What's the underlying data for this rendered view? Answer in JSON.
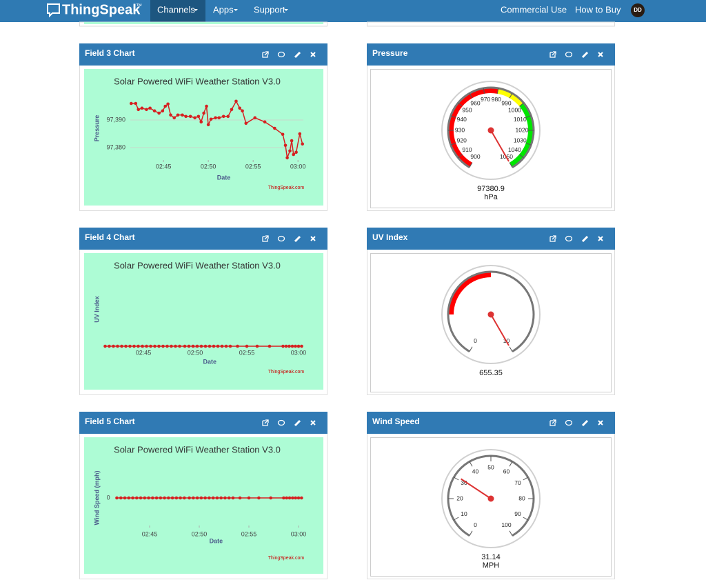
{
  "nav": {
    "brand": "ThingSpeak",
    "trademark": "™",
    "menus": [
      "Channels",
      "Apps",
      "Support"
    ],
    "links": [
      "Commercial Use",
      "How to Buy"
    ],
    "avatar": "DD"
  },
  "charts": [
    {
      "title": "Field 3 Chart",
      "chart_title": "Solar Powered WiFi Weather Station V3.0",
      "y_label": "Pressure",
      "x_label": "Date",
      "credit": "ThingSpeak.com",
      "color": "#d62020",
      "xlim": [
        161.3,
        180.6
      ],
      "ylim": [
        97375.5,
        97398.5
      ],
      "xticks": [
        {
          "value": 165,
          "label": "02:45"
        },
        {
          "value": 170,
          "label": "02:50"
        },
        {
          "value": 175,
          "label": "02:55"
        },
        {
          "value": 180,
          "label": "03:00"
        }
      ],
      "yticks": [
        {
          "value": 97390,
          "label": "97,390"
        },
        {
          "value": 97380,
          "label": "97,380"
        }
      ],
      "x": [
        161.4,
        161.9,
        162.2,
        162.6,
        163.1,
        163.5,
        164.0,
        164.5,
        164.9,
        165.2,
        165.5,
        165.8,
        166.2,
        166.6,
        167.1,
        167.5,
        168.0,
        168.5,
        168.9,
        169.2,
        169.5,
        169.8,
        170.0,
        170.3,
        170.8,
        171.2,
        171.7,
        172.2,
        172.6,
        173.1,
        173.5,
        173.8,
        174.2,
        175.2,
        176.3,
        177.4,
        178.3,
        178.6,
        178.8,
        179.1,
        179.3,
        179.5,
        179.8,
        180.2,
        180.5
      ],
      "values": [
        97396,
        97396,
        97393.8,
        97394.3,
        97393.8,
        97394.3,
        97393.3,
        97392.5,
        97393.3,
        97395,
        97395.8,
        97391.8,
        97390.8,
        97391.8,
        97391.8,
        97391.3,
        97391.3,
        97390.8,
        97391.3,
        97389.3,
        97392.5,
        97395,
        97388.3,
        97390.3,
        97390.8,
        97390.8,
        97391.3,
        97391.3,
        97393.8,
        97396.8,
        97394.3,
        97393.3,
        97388.8,
        97390.8,
        97389.3,
        97387,
        97384.8,
        97380.8,
        97376.3,
        97378.8,
        97382.5,
        97377.5,
        97378.3,
        97385,
        97381.3
      ]
    },
    {
      "title": "Field 4 Chart",
      "chart_title": "Solar Powered WiFi Weather Station V3.0",
      "y_label": "UV Index",
      "x_label": "Date",
      "credit": "ThingSpeak.com",
      "color": "#d62020",
      "xlim": [
        161,
        180.5
      ],
      "ylim": [
        0,
        1
      ],
      "xticks": [
        {
          "value": 165,
          "label": "02:45"
        },
        {
          "value": 170,
          "label": "02:50"
        },
        {
          "value": 175,
          "label": "02:55"
        },
        {
          "value": 180,
          "label": "03:00"
        }
      ],
      "x": [
        161.3,
        161.7,
        162.1,
        162.5,
        162.9,
        163.3,
        163.7,
        164.1,
        164.5,
        164.9,
        165.3,
        165.7,
        166.1,
        166.5,
        166.9,
        167.3,
        167.7,
        168.1,
        168.5,
        169.0,
        169.4,
        169.8,
        170.2,
        170.6,
        171.0,
        171.4,
        171.8,
        172.2,
        172.6,
        173.0,
        173.4,
        174.1,
        175.0,
        176.0,
        177.2,
        178.5,
        178.8,
        179.1,
        179.4,
        179.7,
        180.0,
        180.3
      ],
      "values": [
        0,
        0,
        0,
        0,
        0,
        0,
        0,
        0,
        0,
        0,
        0,
        0,
        0,
        0,
        0,
        0,
        0,
        0,
        0,
        0,
        0,
        0,
        0,
        0,
        0,
        0,
        0,
        0,
        0,
        0,
        0,
        0,
        0,
        0,
        0,
        0,
        0,
        0,
        0,
        0,
        0,
        0
      ]
    },
    {
      "title": "Field 5 Chart",
      "chart_title": "Solar Powered WiFi Weather Station V3.0",
      "y_label": "Wind Speed (mph)",
      "x_label": "Date",
      "credit": "ThingSpeak.com",
      "color": "#d62020",
      "xlim": [
        161.5,
        180.5
      ],
      "ylim": [
        -1,
        1
      ],
      "xticks": [
        {
          "value": 165,
          "label": "02:45"
        },
        {
          "value": 170,
          "label": "02:50"
        },
        {
          "value": 175,
          "label": "02:55"
        },
        {
          "value": 180,
          "label": "03:00"
        }
      ],
      "yticks": [
        0
      ],
      "x": [
        161.7,
        162.1,
        162.5,
        162.9,
        163.3,
        163.7,
        164.1,
        164.5,
        164.9,
        165.3,
        165.7,
        166.1,
        166.5,
        166.9,
        167.3,
        167.7,
        168.1,
        168.5,
        169.0,
        169.4,
        169.8,
        170.2,
        170.6,
        171.0,
        171.4,
        171.8,
        172.2,
        172.6,
        173.0,
        173.4,
        174.1,
        175.0,
        176.0,
        177.2,
        178.5,
        178.8,
        179.1,
        179.4,
        179.7,
        180.0,
        180.3
      ],
      "values": [
        0,
        0,
        0,
        0,
        0,
        0,
        0,
        0,
        0,
        0,
        0,
        0,
        0,
        0,
        0,
        0,
        0,
        0,
        0,
        0,
        0,
        0,
        0,
        0,
        0,
        0,
        0,
        0,
        0,
        0,
        0,
        0,
        0,
        0,
        0,
        0,
        0,
        0,
        0,
        0,
        0
      ]
    }
  ],
  "gauges": [
    {
      "title": "Pressure",
      "min": 900,
      "max": 1050,
      "ticks": [
        900,
        910,
        920,
        930,
        940,
        950,
        960,
        970,
        980,
        990,
        1000,
        1010,
        1020,
        1030,
        1040,
        1050
      ],
      "bands": [
        {
          "from": 900,
          "to": 980,
          "color": "#ff0000"
        },
        {
          "from": 980,
          "to": 1000,
          "color": "#ffff00"
        },
        {
          "from": 1000,
          "to": 1050,
          "color": "#00e600"
        }
      ],
      "value": 97380.9,
      "unit": "hPa"
    },
    {
      "title": "UV Index",
      "min": 0,
      "max": 10,
      "ticks": [
        0,
        10
      ],
      "bands": [
        {
          "from": 2,
          "to": 5,
          "color": "#ff0000"
        }
      ],
      "value": 655.35
    },
    {
      "title": "Wind Speed",
      "min": 0,
      "max": 100,
      "ticks": [
        0,
        10,
        20,
        30,
        40,
        50,
        60,
        70,
        80,
        90,
        100
      ],
      "bands": [],
      "value": 31.14,
      "unit": "MPH"
    }
  ]
}
